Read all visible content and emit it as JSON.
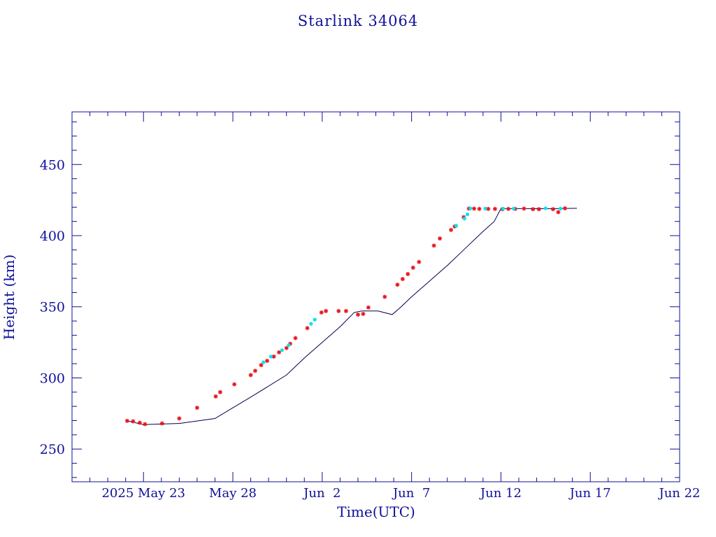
{
  "chart_data": {
    "type": "line",
    "title": "Starlink 34064",
    "xlabel": "Time(UTC)",
    "ylabel": "Height (km)",
    "x_axis": {
      "scale": "date",
      "range": [
        "2025-05-19",
        "2025-06-22"
      ],
      "tick_labels": [
        "2025 May 23",
        "May 28",
        "Jun  2",
        "Jun  7",
        "Jun 12",
        "Jun 17",
        "Jun 22"
      ],
      "tick_dates": [
        "2025-05-23",
        "2025-05-28",
        "2025-06-02",
        "2025-06-07",
        "2025-06-12",
        "2025-06-17",
        "2025-06-22"
      ]
    },
    "y_axis": {
      "range": [
        227,
        487
      ],
      "ticks": [
        250,
        300,
        350,
        400,
        450
      ],
      "tick_labels": [
        "250",
        "300",
        "350",
        "400",
        "450"
      ]
    },
    "grid": false,
    "colors": {
      "axis": "#0f0f9a",
      "line": "#000050",
      "marker_primary": "#e8141e",
      "marker_secondary": "#00e5ee"
    },
    "series": [
      {
        "type": "line",
        "points": [
          [
            "2025-05-22T02:00",
            269.8
          ],
          [
            "2025-05-23T00:00",
            267.2
          ],
          [
            "2025-05-25T00:00",
            268.0
          ],
          [
            "2025-05-27T00:00",
            271.5
          ],
          [
            "2025-05-28T00:00",
            279.0
          ],
          [
            "2025-05-29T00:00",
            286.5
          ],
          [
            "2025-05-31T00:00",
            302.0
          ],
          [
            "2025-06-01T00:00",
            314.0
          ],
          [
            "2025-06-02T00:00",
            325.0
          ],
          [
            "2025-06-03T00:00",
            336.0
          ],
          [
            "2025-06-03T19:00",
            346.0
          ],
          [
            "2025-06-04T05:00",
            347.0
          ],
          [
            "2025-06-05T03:00",
            347.0
          ],
          [
            "2025-06-05T22:00",
            344.5
          ],
          [
            "2025-06-06T10:00",
            350.0
          ],
          [
            "2025-06-07T00:00",
            357.0
          ],
          [
            "2025-06-08T00:00",
            368.0
          ],
          [
            "2025-06-09T00:00",
            379.0
          ],
          [
            "2025-06-10T00:00",
            391.0
          ],
          [
            "2025-06-11T00:00",
            403.0
          ],
          [
            "2025-06-11T15:00",
            410.0
          ],
          [
            "2025-06-12T00:00",
            419.0
          ],
          [
            "2025-06-15T00:00",
            419.0
          ],
          [
            "2025-06-16T06:00",
            419.2
          ]
        ]
      },
      {
        "type": "scatter",
        "marker": "red-star",
        "points": [
          [
            "2025-05-22T02:00",
            269.8
          ],
          [
            "2025-05-22T10:00",
            269.5
          ],
          [
            "2025-05-22T19:00",
            268.5
          ],
          [
            "2025-05-23T02:00",
            267.5
          ],
          [
            "2025-05-24T01:00",
            268.0
          ],
          [
            "2025-05-25T00:00",
            271.5
          ],
          [
            "2025-05-26T00:00",
            279.0
          ],
          [
            "2025-05-27T01:00",
            287.0
          ],
          [
            "2025-05-27T07:00",
            290.0
          ],
          [
            "2025-05-28T02:00",
            295.5
          ],
          [
            "2025-05-29T00:00",
            302.0
          ],
          [
            "2025-05-29T06:00",
            305.0
          ],
          [
            "2025-05-29T14:00",
            309.0
          ],
          [
            "2025-05-29T22:00",
            312.0
          ],
          [
            "2025-05-30T07:00",
            315.0
          ],
          [
            "2025-05-30T14:00",
            318.0
          ],
          [
            "2025-05-31T00:00",
            321.0
          ],
          [
            "2025-05-31T05:00",
            324.0
          ],
          [
            "2025-05-31T12:00",
            328.0
          ],
          [
            "2025-06-01T04:00",
            335.0
          ],
          [
            "2025-06-01T23:00",
            346.0
          ],
          [
            "2025-06-02T05:00",
            347.0
          ],
          [
            "2025-06-02T22:00",
            347.0
          ],
          [
            "2025-06-03T08:00",
            347.0
          ],
          [
            "2025-06-04T00:00",
            344.5
          ],
          [
            "2025-06-04T07:00",
            345.0
          ],
          [
            "2025-06-04T14:00",
            349.5
          ],
          [
            "2025-06-05T12:00",
            357.0
          ],
          [
            "2025-06-06T05:00",
            365.5
          ],
          [
            "2025-06-06T12:00",
            369.5
          ],
          [
            "2025-06-06T19:00",
            373.0
          ],
          [
            "2025-06-07T02:00",
            377.5
          ],
          [
            "2025-06-07T10:00",
            381.5
          ],
          [
            "2025-06-08T06:00",
            393.0
          ],
          [
            "2025-06-08T14:00",
            398.0
          ],
          [
            "2025-06-09T05:00",
            404.0
          ],
          [
            "2025-06-09T10:00",
            406.5
          ],
          [
            "2025-06-09T22:00",
            413.0
          ],
          [
            "2025-06-10T05:00",
            419.0
          ],
          [
            "2025-06-10T12:00",
            419.0
          ],
          [
            "2025-06-10T19:00",
            418.8
          ],
          [
            "2025-06-11T07:00",
            418.8
          ],
          [
            "2025-06-11T16:00",
            418.8
          ],
          [
            "2025-06-12T02:00",
            418.6
          ],
          [
            "2025-06-12T10:00",
            418.8
          ],
          [
            "2025-06-12T19:00",
            418.8
          ],
          [
            "2025-06-13T07:00",
            419.0
          ],
          [
            "2025-06-13T19:00",
            418.6
          ],
          [
            "2025-06-14T03:00",
            418.6
          ],
          [
            "2025-06-14T22:00",
            418.6
          ],
          [
            "2025-06-15T05:00",
            416.5
          ],
          [
            "2025-06-15T14:00",
            419.2
          ]
        ]
      },
      {
        "type": "scatter",
        "marker": "cyan-dot",
        "points": [
          [
            "2025-05-29T17:00",
            311.0
          ],
          [
            "2025-05-30T03:00",
            315.0
          ],
          [
            "2025-05-30T18:00",
            319.5
          ],
          [
            "2025-05-31T03:00",
            323.0
          ],
          [
            "2025-06-01T09:00",
            338.0
          ],
          [
            "2025-06-01T14:00",
            341.0
          ],
          [
            "2025-06-09T12:00",
            407.0
          ],
          [
            "2025-06-09T23:00",
            412.0
          ],
          [
            "2025-06-10T03:00",
            415.0
          ],
          [
            "2025-06-10T07:00",
            419.2
          ],
          [
            "2025-06-11T03:00",
            419.0
          ],
          [
            "2025-06-12T03:00",
            419.0
          ],
          [
            "2025-06-12T17:00",
            419.0
          ],
          [
            "2025-06-14T12:00",
            419.2
          ],
          [
            "2025-06-15T08:00",
            419.0
          ]
        ]
      }
    ]
  }
}
